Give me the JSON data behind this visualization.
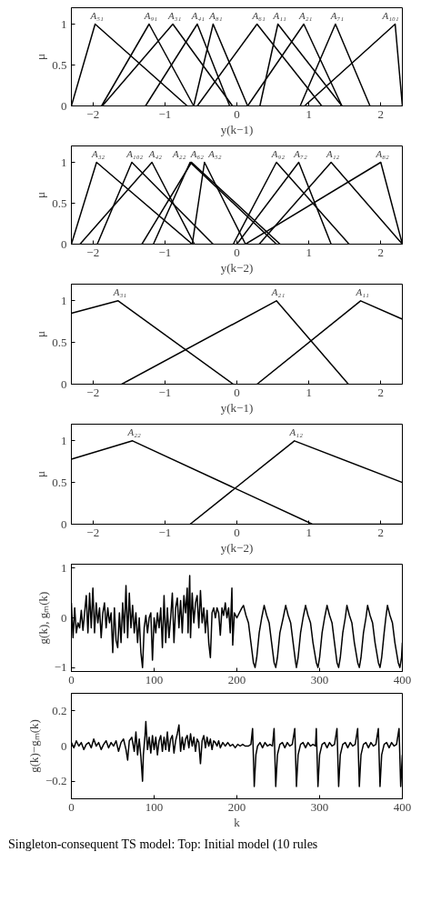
{
  "chart_data": [
    {
      "type": "line",
      "xlabel": "y(k−1)",
      "ylabel": "μ",
      "xlim": [
        -2.3,
        2.3
      ],
      "ylim": [
        0,
        1.2
      ],
      "xticks": [
        -2,
        -1,
        0,
        1,
        2
      ],
      "yticks": [
        0,
        0.5,
        1
      ],
      "series": [
        {
          "name": "A₅₁",
          "color": "#000000",
          "x": [
            -2.3,
            -1.97,
            -0.69
          ],
          "values": [
            0,
            1,
            0
          ]
        },
        {
          "name": "A₉₁",
          "color": "#000000",
          "x": [
            -1.88,
            -1.22,
            -0.6
          ],
          "values": [
            0,
            1,
            0
          ]
        },
        {
          "name": "A₃₁",
          "color": "#000000",
          "x": [
            -1.87,
            -0.89,
            -0.06
          ],
          "values": [
            0,
            1,
            0
          ]
        },
        {
          "name": "A₄₁",
          "color": "#000000",
          "x": [
            -1.27,
            -0.55,
            -0.1
          ],
          "values": [
            0,
            1,
            0
          ]
        },
        {
          "name": "A₈₁",
          "color": "#000000",
          "x": [
            -0.6,
            -0.33,
            0.15
          ],
          "values": [
            0,
            1,
            0
          ]
        },
        {
          "name": "A₆₁",
          "color": "#000000",
          "x": [
            -0.55,
            0.28,
            1.18
          ],
          "values": [
            0,
            1,
            0
          ]
        },
        {
          "name": "A₁₁",
          "color": "#000000",
          "x": [
            0.32,
            0.57,
            1.46
          ],
          "values": [
            0,
            1,
            0
          ]
        },
        {
          "name": "A₂₁",
          "color": "#000000",
          "x": [
            0.15,
            0.93,
            1.46
          ],
          "values": [
            0,
            1,
            0
          ]
        },
        {
          "name": "A₇₁",
          "color": "#000000",
          "x": [
            0.88,
            1.37,
            1.85
          ],
          "values": [
            0,
            1,
            0
          ]
        },
        {
          "name": "A₁₀₁",
          "color": "#000000",
          "x": [
            0.94,
            2.2,
            2.3
          ],
          "values": [
            0,
            1,
            0
          ]
        }
      ]
    },
    {
      "type": "line",
      "xlabel": "y(k−2)",
      "ylabel": "μ",
      "xlim": [
        -2.3,
        2.3
      ],
      "ylim": [
        0,
        1.2
      ],
      "xticks": [
        -2,
        -1,
        0,
        1,
        2
      ],
      "yticks": [
        0,
        0.5,
        1
      ],
      "series": [
        {
          "name": "A₃₂",
          "color": "#000000",
          "x": [
            -2.3,
            -1.95,
            -0.62
          ],
          "values": [
            0,
            1,
            0
          ]
        },
        {
          "name": "A₁₀₂",
          "color": "#000000",
          "x": [
            -1.94,
            -1.46,
            -0.33
          ],
          "values": [
            0,
            1,
            0
          ]
        },
        {
          "name": "A₄₂",
          "color": "#000000",
          "x": [
            -2.18,
            -1.18,
            -0.59
          ],
          "values": [
            0,
            1,
            0
          ]
        },
        {
          "name": "A₂₂",
          "color": "#000000",
          "x": [
            -1.16,
            -0.65,
            0.55
          ],
          "values": [
            0,
            1,
            0
          ]
        },
        {
          "name": "A₆₂",
          "color": "#000000",
          "x": [
            -1.32,
            -0.63,
            0.6
          ],
          "values": [
            0,
            1,
            0
          ]
        },
        {
          "name": "A₅₂",
          "color": "#000000",
          "x": [
            -0.62,
            -0.45,
            0.12
          ],
          "values": [
            0,
            1,
            0
          ]
        },
        {
          "name": "A₉₂",
          "color": "#000000",
          "x": [
            -0.05,
            0.55,
            1.56
          ],
          "values": [
            0,
            1,
            0
          ]
        },
        {
          "name": "A₇₂",
          "color": "#000000",
          "x": [
            0,
            0.86,
            1.31
          ],
          "values": [
            0,
            1,
            0
          ]
        },
        {
          "name": "A₁₂",
          "color": "#000000",
          "x": [
            0.31,
            1.31,
            2.3
          ],
          "values": [
            0,
            1,
            0
          ]
        },
        {
          "name": "A₈₂",
          "color": "#000000",
          "x": [
            0.12,
            2.0,
            2.3
          ],
          "values": [
            0,
            1,
            0
          ]
        }
      ]
    },
    {
      "type": "line",
      "xlabel": "y(k−1)",
      "ylabel": "μ",
      "xlim": [
        -2.3,
        2.3
      ],
      "ylim": [
        0,
        1.2
      ],
      "xticks": [
        -2,
        -1,
        0,
        1,
        2
      ],
      "yticks": [
        0,
        0.5,
        1
      ],
      "series": [
        {
          "name": "A₃₁",
          "color": "#000000",
          "x": [
            -2.3,
            -1.65,
            -0.05
          ],
          "values": [
            0.85,
            1,
            0
          ]
        },
        {
          "name": "A₂₁",
          "color": "#000000",
          "x": [
            -1.6,
            0.55,
            1.55
          ],
          "values": [
            0,
            1,
            0
          ]
        },
        {
          "name": "A₁₁",
          "color": "#000000",
          "x": [
            0.28,
            1.72,
            2.3
          ],
          "values": [
            0,
            1,
            0.78
          ]
        }
      ]
    },
    {
      "type": "line",
      "xlabel": "y(k−2)",
      "ylabel": "μ",
      "xlim": [
        -2.3,
        2.3
      ],
      "ylim": [
        0,
        1.2
      ],
      "xticks": [
        -2,
        -1,
        0,
        1,
        2
      ],
      "yticks": [
        0,
        0.5,
        1
      ],
      "series": [
        {
          "name": "A₂₂",
          "color": "#000000",
          "x": [
            -2.3,
            -1.45,
            1.05,
            2.3
          ],
          "values": [
            0.78,
            1,
            0,
            0
          ]
        },
        {
          "name": "A₁₂",
          "color": "#000000",
          "x": [
            -0.65,
            0.8,
            2.3
          ],
          "values": [
            0,
            1,
            0.5
          ]
        }
      ]
    },
    {
      "type": "line",
      "ylabel": "g(k), gₘ(k)",
      "xlim": [
        0,
        400
      ],
      "ylim": [
        -1.08,
        1.08
      ],
      "xticks": [
        0,
        100,
        200,
        300,
        400
      ],
      "yticks": [
        -1,
        0,
        1
      ],
      "series": [
        {
          "color": "#000000",
          "x": [
            0,
            2,
            4,
            6,
            8,
            10,
            12,
            14,
            16,
            18,
            20,
            22,
            24,
            26,
            28,
            30,
            32,
            34,
            36,
            38,
            40,
            42,
            44,
            46,
            48,
            50,
            52,
            54,
            56,
            58,
            60,
            62,
            64,
            66,
            68,
            70,
            72,
            74,
            76,
            78,
            80,
            82,
            84,
            86,
            88,
            90,
            92,
            94,
            96,
            98,
            100,
            102,
            104,
            106,
            108,
            110,
            112,
            114,
            116,
            118,
            120,
            122,
            124,
            126,
            128,
            130,
            132,
            134,
            136,
            138,
            140,
            141,
            143,
            144,
            146,
            148,
            150,
            152,
            154,
            156,
            158,
            160,
            162,
            164,
            166,
            168,
            170,
            172,
            174,
            176,
            178,
            180,
            182,
            184,
            186,
            188,
            190,
            192,
            194,
            195,
            197,
            200,
            203,
            206,
            208,
            211,
            214,
            217,
            220,
            222,
            224,
            227,
            230,
            233,
            236,
            239,
            242,
            245,
            247,
            249,
            252,
            256,
            259,
            262,
            265,
            268,
            271,
            272,
            274,
            277,
            280,
            283,
            286,
            289,
            292,
            296,
            298,
            300,
            303,
            306,
            309,
            312,
            315,
            318,
            321,
            323,
            325,
            328,
            331,
            333,
            336,
            339,
            342,
            346,
            348,
            350,
            353,
            356,
            358,
            361,
            364,
            367,
            371,
            373,
            375,
            378,
            380,
            382,
            385,
            388,
            391,
            395,
            397,
            399,
            400
          ],
          "values": [
            0.3,
            -0.4,
            0.2,
            -0.3,
            -0.1,
            -0.2,
            0.15,
            -0.25,
            0.1,
            0.45,
            -0.3,
            0.5,
            -0.2,
            0.6,
            -0.3,
            0.3,
            -0.1,
            0.2,
            -0.4,
            0.1,
            0.3,
            -0.2,
            0.2,
            -0.1,
            0.1,
            -0.7,
            0.2,
            -0.45,
            -0.6,
            0.1,
            -0.5,
            0.3,
            -0.3,
            0.65,
            -0.4,
            0.5,
            -0.2,
            0.25,
            -0.3,
            0.1,
            -0.5,
            0.0,
            -0.7,
            -1.0,
            -0.2,
            0.05,
            -0.3,
            0.0,
            0.1,
            -0.85,
            0.0,
            -0.3,
            0.1,
            -0.2,
            0.2,
            -0.6,
            0.45,
            -0.5,
            0.2,
            -0.4,
            0.0,
            0.5,
            -0.5,
            0.2,
            0.4,
            -0.2,
            0.35,
            -0.3,
            0.45,
            0.1,
            0.6,
            -0.3,
            0.85,
            -0.4,
            0.5,
            -0.1,
            0.3,
            0.45,
            -0.2,
            0.55,
            -0.1,
            0.2,
            -0.3,
            0.15,
            -0.5,
            -0.8,
            0.1,
            0.2,
            0.0,
            0.2,
            0.1,
            -0.35,
            0.2,
            0.05,
            0.3,
            0.0,
            0.2,
            -0.3,
            0.6,
            -0.55,
            0.1,
            0.0,
            0.1,
            0.2,
            0.25,
            0.05,
            -0.1,
            -0.5,
            -0.9,
            -1.0,
            -0.8,
            -0.3,
            0.0,
            0.25,
            0.05,
            -0.1,
            -0.5,
            -0.9,
            -1.0,
            -0.8,
            -0.3,
            0.0,
            0.25,
            0.05,
            -0.1,
            -0.5,
            -0.9,
            -1.0,
            -0.8,
            -0.3,
            0.0,
            0.25,
            0.05,
            -0.1,
            -0.5,
            -0.9,
            -1.0,
            -0.8,
            -0.3,
            0.0,
            0.25,
            0.05,
            -0.1,
            -0.5,
            -0.9,
            -1.0,
            -0.8,
            -0.3,
            0.0,
            0.25,
            0.05,
            -0.1,
            -0.5,
            -0.9,
            -1.0,
            -0.8,
            -0.3,
            0.0,
            0.25,
            0.05,
            -0.1,
            -0.5,
            -0.9,
            -1.0,
            -0.8,
            -0.3,
            0.0,
            0.25,
            0.05,
            -0.1,
            -0.5,
            -0.9,
            -1.0,
            -0.8,
            -0.5
          ]
        }
      ]
    },
    {
      "type": "line",
      "xlabel": "k",
      "ylabel": "g(k)−gₘ(k)",
      "xlim": [
        0,
        400
      ],
      "ylim": [
        -0.3,
        0.3
      ],
      "xticks": [
        0,
        100,
        200,
        300,
        400
      ],
      "yticks": [
        -0.2,
        0,
        0.2
      ],
      "annotations": [
        "Singleton-consequent TS model: Top: Initial model (10 rules"
      ],
      "series": [
        {
          "color": "#000000",
          "x": [
            0,
            3,
            6,
            9,
            12,
            15,
            18,
            21,
            24,
            27,
            30,
            33,
            36,
            39,
            42,
            45,
            48,
            51,
            54,
            57,
            60,
            63,
            66,
            68,
            70,
            73,
            76,
            78,
            80,
            82,
            84,
            86,
            87,
            89,
            90,
            92,
            94,
            96,
            98,
            100,
            102,
            104,
            106,
            108,
            110,
            112,
            114,
            116,
            118,
            120,
            122,
            124,
            126,
            128,
            130,
            132,
            134,
            136,
            138,
            140,
            142,
            144,
            146,
            148,
            150,
            152,
            154,
            156,
            158,
            160,
            162,
            164,
            166,
            168,
            170,
            172,
            174,
            176,
            178,
            180,
            183,
            186,
            189,
            192,
            195,
            198,
            201,
            204,
            207,
            210,
            214,
            217,
            219,
            221,
            223,
            225,
            228,
            231,
            234,
            237,
            240,
            243,
            245,
            247,
            249,
            252,
            255,
            258,
            261,
            264,
            267,
            270,
            272,
            274,
            277,
            280,
            283,
            286,
            289,
            292,
            295,
            296,
            298,
            300,
            303,
            306,
            309,
            312,
            315,
            318,
            321,
            323,
            325,
            328,
            331,
            334,
            337,
            340,
            343,
            346,
            348,
            350,
            353,
            356,
            359,
            362,
            365,
            368,
            371,
            373,
            375,
            378,
            381,
            384,
            387,
            390,
            393,
            396,
            398,
            400
          ],
          "values": [
            0.02,
            -0.01,
            0.03,
            0.0,
            0.02,
            -0.02,
            0.01,
            0.02,
            -0.01,
            0.04,
            0.0,
            0.02,
            -0.02,
            0.01,
            0.03,
            -0.01,
            0.02,
            0.0,
            0.03,
            -0.03,
            0.02,
            0.04,
            -0.02,
            -0.08,
            0.03,
            0.05,
            -0.03,
            0.08,
            -0.05,
            0.04,
            -0.06,
            -0.2,
            -0.05,
            0.06,
            0.14,
            -0.02,
            0.05,
            -0.04,
            0.06,
            -0.02,
            0.05,
            -0.05,
            0.03,
            0.06,
            -0.03,
            0.05,
            -0.02,
            0.08,
            -0.03,
            0.04,
            0.06,
            -0.04,
            0.03,
            0.07,
            0.12,
            -0.03,
            0.05,
            -0.02,
            0.04,
            0.06,
            -0.01,
            0.07,
            0.0,
            0.05,
            -0.03,
            0.04,
            0.02,
            -0.1,
            0.03,
            0.06,
            -0.01,
            0.05,
            0.0,
            0.04,
            -0.02,
            0.03,
            0.02,
            0.0,
            0.03,
            -0.01,
            0.02,
            0.0,
            0.02,
            0.0,
            0.01,
            -0.01,
            0.01,
            0.0,
            0.01,
            0.0,
            0.0,
            0.01,
            0.1,
            -0.23,
            -0.05,
            0.0,
            0.02,
            -0.01,
            0.02,
            0.0,
            0.01,
            0.0,
            0.1,
            -0.23,
            -0.05,
            0.01,
            0.02,
            -0.01,
            0.02,
            0.0,
            0.01,
            0.1,
            -0.23,
            -0.05,
            0.01,
            0.02,
            -0.01,
            0.02,
            0.0,
            0.01,
            0.0,
            0.1,
            -0.23,
            -0.05,
            0.01,
            0.02,
            -0.01,
            0.02,
            0.0,
            0.01,
            0.1,
            -0.23,
            -0.05,
            0.01,
            0.02,
            -0.01,
            0.02,
            0.0,
            0.01,
            0.1,
            -0.23,
            -0.05,
            0.01,
            0.02,
            -0.01,
            0.02,
            0.0,
            0.01,
            0.1,
            -0.23,
            -0.05,
            0.01,
            0.02,
            -0.01,
            0.02,
            0.0,
            0.01,
            0.1,
            -0.23,
            -0.05
          ]
        }
      ]
    }
  ]
}
